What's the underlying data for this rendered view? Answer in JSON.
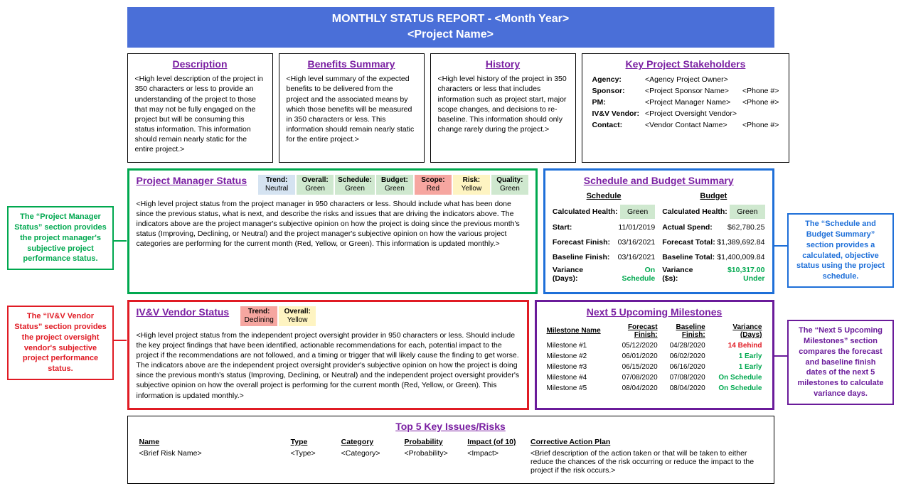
{
  "header": {
    "line1": "MONTHLY STATUS REPORT - <Month Year>",
    "line2": "<Project Name>"
  },
  "topRow": {
    "description": {
      "title": "Description",
      "text": "<High level description of the project in 350 characters or less to provide an understanding of the project to those that may not be fully engaged on the project but will be consuming this status information. This information should remain nearly static for the entire project.>"
    },
    "benefits": {
      "title": "Benefits Summary",
      "text": "<High level summary of the expected benefits to be delivered from the project and the associated means by which those benefits will be measured in 350 characters or less. This information should remain nearly static for the entire project.>"
    },
    "history": {
      "title": "History",
      "text": "<High level history of the project in 350 characters or less that includes information such as project start, major scope changes, and decisions to re-baseline. This information should only change rarely during the project.>"
    },
    "stakeholders": {
      "title": "Key Project Stakeholders",
      "rows": [
        {
          "label": "Agency:",
          "c1": "<Agency Project Owner>",
          "c2": ""
        },
        {
          "label": "Sponsor:",
          "c1": "<Project Sponsor Name>",
          "c2": "<Phone #>"
        },
        {
          "label": "PM:",
          "c1": "<Project Manager Name>",
          "c2": "<Phone #>"
        },
        {
          "label": "IV&V Vendor:",
          "c1": "<Project Oversight Vendor>",
          "c2": ""
        },
        {
          "label": "Contact:",
          "c1": "<Vendor Contact Name>",
          "c2": "<Phone #>"
        }
      ]
    }
  },
  "pmStatus": {
    "title": "Project Manager Status",
    "chips": [
      {
        "label": "Trend:",
        "value": "Neutral",
        "bg": "#d5e3f1"
      },
      {
        "label": "Overall:",
        "value": "Green",
        "bg": "#cfe8cf"
      },
      {
        "label": "Schedule:",
        "value": "Green",
        "bg": "#cfe8cf"
      },
      {
        "label": "Budget:",
        "value": "Green",
        "bg": "#cfe8cf"
      },
      {
        "label": "Scope:",
        "value": "Red",
        "bg": "#f6a6a0"
      },
      {
        "label": "Risk:",
        "value": "Yellow",
        "bg": "#fef4c2"
      },
      {
        "label": "Quality:",
        "value": "Green",
        "bg": "#cfe8cf"
      }
    ],
    "text": "<High level project status from the project manager in 950 characters or less. Should include what has been done since the previous status, what is next, and describe the risks and issues that are driving the indicators above. The indicators above are the project manager's subjective opinion on how the project is doing since the previous month's status (Improving, Declining, or Neutral) and the project manager's subjective opinion on how the various project categories are performing for the current month (Red, Yellow, or Green). This information is updated monthly.>"
  },
  "ivvStatus": {
    "title": "IV&V Vendor Status",
    "chips": [
      {
        "label": "Trend:",
        "value": "Declining",
        "bg": "#f6a6a0"
      },
      {
        "label": "Overall:",
        "value": "Yellow",
        "bg": "#fef4c2"
      }
    ],
    "text": "<High level project status from the independent project oversight provider in 950 characters or less. Should include the key project findings that have been identified, actionable recommendations for each, potential impact to the project if the recommendations are not followed, and a timing or trigger that will likely cause the finding to get worse. The indicators above are the independent project oversight provider's subjective opinion on how the project is doing since the previous month's status (Improving, Declining, or Neutral) and the independent project oversight provider's subjective opinion on how the overall project is performing for the current month (Red, Yellow, or Green). This information is updated monthly.>"
  },
  "schedBudget": {
    "title": "Schedule and Budget Summary",
    "schedule": {
      "heading": "Schedule",
      "healthLabel": "Calculated Health:",
      "healthValue": "Green",
      "healthBg": "#cfe8cf",
      "rows": [
        {
          "k": "Start:",
          "v": "11/01/2019"
        },
        {
          "k": "Forecast Finish:",
          "v": "03/16/2021"
        },
        {
          "k": "Baseline Finish:",
          "v": "03/16/2021"
        }
      ],
      "varLabel": "Variance (Days):",
      "varValue": "On Schedule",
      "varColor": "#00a84f"
    },
    "budget": {
      "heading": "Budget",
      "healthLabel": "Calculated Health:",
      "healthValue": "Green",
      "healthBg": "#cfe8cf",
      "rows": [
        {
          "k": "Actual Spend:",
          "v": "$62,780.25"
        },
        {
          "k": "Forecast Total:",
          "v": "$1,389,692.84"
        },
        {
          "k": "Baseline Total:",
          "v": "$1,400,009.84"
        }
      ],
      "varLabel": "Variance ($s):",
      "varValue": "$10,317.00 Under",
      "varColor": "#00a84f"
    }
  },
  "milestones": {
    "title": "Next 5 Upcoming Milestones",
    "headers": [
      "Milestone Name",
      "Forecast Finish:",
      "Baseline Finish:",
      "Variance (Days)"
    ],
    "rows": [
      {
        "name": "Milestone #1",
        "f": "05/12/2020",
        "b": "04/28/2020",
        "v": "14 Behind",
        "c": "#e01b24"
      },
      {
        "name": "Milestone #2",
        "f": "06/01/2020",
        "b": "06/02/2020",
        "v": "1 Early",
        "c": "#00a84f"
      },
      {
        "name": "Milestone #3",
        "f": "06/15/2020",
        "b": "06/16/2020",
        "v": "1 Early",
        "c": "#00a84f"
      },
      {
        "name": "Milestone #4",
        "f": "07/08/2020",
        "b": "07/08/2020",
        "v": "On Schedule",
        "c": "#00a84f"
      },
      {
        "name": "Milestone #5",
        "f": "08/04/2020",
        "b": "08/04/2020",
        "v": "On Schedule",
        "c": "#00a84f"
      }
    ]
  },
  "issues": {
    "title": "Top 5 Key Issues/Risks",
    "headers": [
      "Name",
      "Type",
      "Category",
      "Probability",
      "Impact (of 10)",
      "Corrective Action Plan"
    ],
    "row": {
      "name": "<Brief Risk Name>",
      "type": "<Type>",
      "category": "<Category>",
      "probability": "<Probability>",
      "impact": "<Impact>",
      "plan": "<Brief description of the action taken or that will be taken to either reduce the chances of the risk occurring or reduce the impact to the project if the risk occurs.>"
    }
  },
  "callouts": {
    "pm": "The “Project Manager Status” section provides the project manager's subjective project performance status.",
    "ivv": "The “IV&V Vendor Status” section provides the project oversight vendor's subjective project performance status.",
    "sched": "The “Schedule and Budget Summary” section provides a calculated, objective status using the project schedule.",
    "mile": "The “Next 5 Upcoming Milestones” section compares the forecast and baseline finish dates of the next 5 milestones to calculate variance days."
  },
  "layout": {
    "topBoxWidths": {
      "desc": 205,
      "benefits": 205,
      "history": 205,
      "stake": 280
    },
    "midLeftWidth": 565,
    "midRightWidth": 335
  }
}
